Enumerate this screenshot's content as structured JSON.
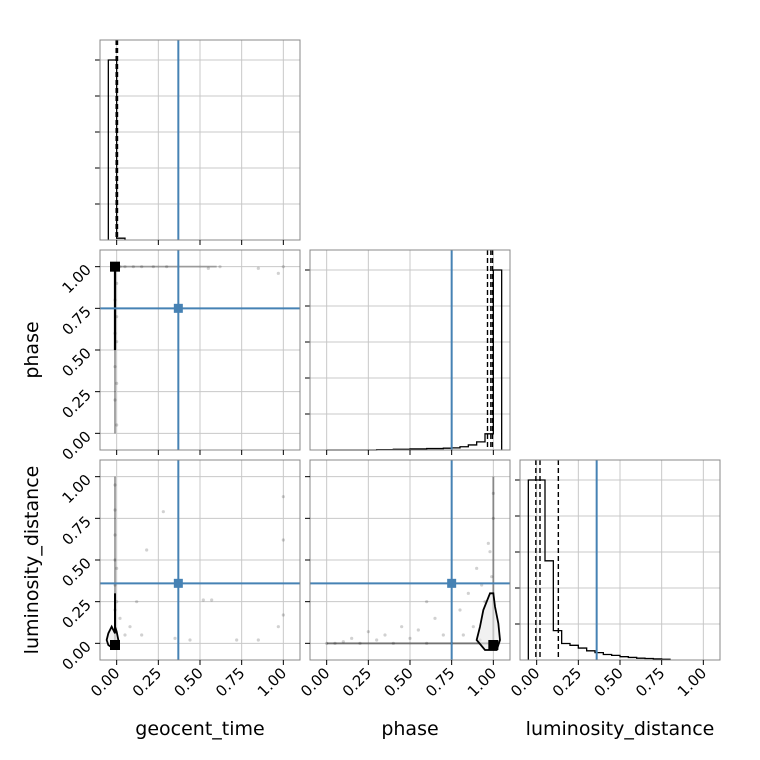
{
  "chart_data": {
    "type": "corner",
    "parameters": [
      {
        "key": "geocent_time",
        "label": "geocent_time",
        "truth": 0.37,
        "quantiles": [
          -0.003,
          0.0,
          0.005
        ]
      },
      {
        "key": "phase",
        "label": "phase",
        "truth": 0.75,
        "quantiles": [
          0.965,
          0.985,
          0.995
        ]
      },
      {
        "key": "luminosity_distance",
        "label": "luminosity_distance",
        "truth": 0.36,
        "quantiles": [
          -0.005,
          0.02,
          0.13
        ]
      }
    ],
    "axis_range": [
      -0.1,
      1.1
    ],
    "tick_values": [
      0.0,
      0.25,
      0.5,
      0.75,
      1.0
    ],
    "tick_labels": [
      "0.00",
      "0.25",
      "0.50",
      "0.75",
      "1.00"
    ],
    "grid": true,
    "truth_color": "#4682b4",
    "hist_color": "#000000",
    "histograms": {
      "geocent_time": {
        "bin_edges": [
          -0.05,
          -0.0,
          0.05
        ],
        "counts": [
          1.0,
          0.01
        ]
      },
      "phase": {
        "bin_edges": [
          0.0,
          0.05,
          0.1,
          0.15,
          0.2,
          0.25,
          0.3,
          0.35,
          0.4,
          0.45,
          0.5,
          0.55,
          0.6,
          0.65,
          0.7,
          0.75,
          0.8,
          0.85,
          0.9,
          0.95,
          1.0,
          1.05
        ],
        "counts": [
          0,
          0,
          0,
          0,
          0,
          0,
          0.002,
          0.002,
          0.004,
          0.004,
          0.006,
          0.006,
          0.008,
          0.008,
          0.01,
          0.012,
          0.018,
          0.028,
          0.045,
          0.09,
          1.0
        ]
      },
      "luminosity_distance": {
        "bin_edges": [
          -0.05,
          0.0,
          0.05,
          0.1,
          0.15,
          0.2,
          0.25,
          0.3,
          0.35,
          0.4,
          0.45,
          0.5,
          0.55,
          0.6,
          0.65,
          0.7,
          0.75,
          0.8
        ],
        "counts": [
          0.98,
          0.98,
          0.54,
          0.16,
          0.09,
          0.08,
          0.065,
          0.05,
          0.04,
          0.03,
          0.025,
          0.018,
          0.014,
          0.01,
          0.008,
          0.006,
          0.004
        ]
      }
    },
    "maxima_markers": {
      "phase_vs_geocent_time": {
        "x": -0.01,
        "y": 1.0
      },
      "luminosity_distance_vs_geocent_time": {
        "x": -0.01,
        "y": -0.01
      },
      "luminosity_distance_vs_phase": {
        "x": 1.0,
        "y": -0.01
      }
    },
    "contours": {
      "luminosity_distance_vs_geocent_time": [
        [
          -0.01,
          0.06
        ],
        [
          -0.03,
          0.1
        ],
        [
          -0.05,
          0.06
        ],
        [
          -0.06,
          0.02
        ],
        [
          -0.05,
          -0.01
        ],
        [
          -0.02,
          -0.03
        ],
        [
          0.0,
          -0.02
        ],
        [
          0.01,
          0.02
        ],
        [
          0.0,
          0.07
        ],
        [
          -0.01,
          0.1
        ]
      ],
      "luminosity_distance_vs_phase": [
        [
          0.98,
          0.3
        ],
        [
          0.94,
          0.2
        ],
        [
          0.92,
          0.1
        ],
        [
          0.9,
          0.02
        ],
        [
          0.95,
          -0.04
        ],
        [
          1.02,
          -0.04
        ],
        [
          1.04,
          0.02
        ],
        [
          1.03,
          0.12
        ],
        [
          1.01,
          0.22
        ],
        [
          1.0,
          0.3
        ]
      ]
    },
    "scatter_samples": {
      "phase_vs_geocent_time": [
        [
          0.05,
          1.0
        ],
        [
          0.1,
          1.0
        ],
        [
          0.15,
          1.0
        ],
        [
          0.22,
          1.0
        ],
        [
          0.3,
          1.0
        ],
        [
          0.55,
          0.99
        ],
        [
          0.62,
          1.0
        ],
        [
          0.85,
          0.99
        ],
        [
          0.97,
          0.96
        ],
        [
          1.0,
          1.0
        ],
        [
          -0.01,
          0.2
        ],
        [
          -0.01,
          0.4
        ],
        [
          -0.01,
          0.6
        ],
        [
          -0.01,
          0.8
        ],
        [
          0.0,
          0.05
        ],
        [
          0.0,
          0.3
        ],
        [
          0.0,
          0.55
        ],
        [
          0.0,
          0.7
        ],
        [
          0.0,
          0.9
        ],
        [
          0.02,
          1.0
        ]
      ],
      "luminosity_distance_vs_geocent_time": [
        [
          -0.01,
          0.2
        ],
        [
          -0.01,
          0.35
        ],
        [
          -0.01,
          0.5
        ],
        [
          -0.01,
          0.65
        ],
        [
          -0.01,
          0.8
        ],
        [
          -0.01,
          0.95
        ],
        [
          0.0,
          0.25
        ],
        [
          0.0,
          0.45
        ],
        [
          0.02,
          0.15
        ],
        [
          0.05,
          0.05
        ],
        [
          0.08,
          0.1
        ],
        [
          0.12,
          0.25
        ],
        [
          0.15,
          0.05
        ],
        [
          0.18,
          0.56
        ],
        [
          0.28,
          0.79
        ],
        [
          0.35,
          0.03
        ],
        [
          0.44,
          0.02
        ],
        [
          0.52,
          0.26
        ],
        [
          0.57,
          0.26
        ],
        [
          0.72,
          0.02
        ],
        [
          0.85,
          0.02
        ],
        [
          0.97,
          0.1
        ],
        [
          1.0,
          0.17
        ],
        [
          1.0,
          0.62
        ],
        [
          1.0,
          0.88
        ]
      ],
      "luminosity_distance_vs_phase": [
        [
          0.0,
          0.0
        ],
        [
          0.05,
          0.0
        ],
        [
          0.1,
          0.01
        ],
        [
          0.15,
          0.03
        ],
        [
          0.2,
          0.0
        ],
        [
          0.25,
          0.07
        ],
        [
          0.3,
          0.02
        ],
        [
          0.35,
          0.05
        ],
        [
          0.4,
          0.0
        ],
        [
          0.45,
          0.1
        ],
        [
          0.5,
          0.03
        ],
        [
          0.55,
          0.08
        ],
        [
          0.6,
          0.0
        ],
        [
          0.65,
          0.15
        ],
        [
          0.7,
          0.05
        ],
        [
          0.75,
          0.0
        ],
        [
          0.8,
          0.2
        ],
        [
          0.82,
          0.05
        ],
        [
          0.85,
          0.3
        ],
        [
          0.88,
          0.1
        ],
        [
          0.9,
          0.45
        ],
        [
          0.92,
          0.02
        ],
        [
          0.95,
          0.25
        ],
        [
          0.97,
          0.6
        ],
        [
          0.99,
          0.4
        ],
        [
          1.0,
          0.75
        ],
        [
          1.0,
          0.9
        ],
        [
          0.98,
          0.55
        ],
        [
          0.93,
          0.35
        ],
        [
          0.6,
          0.25
        ]
      ]
    }
  }
}
